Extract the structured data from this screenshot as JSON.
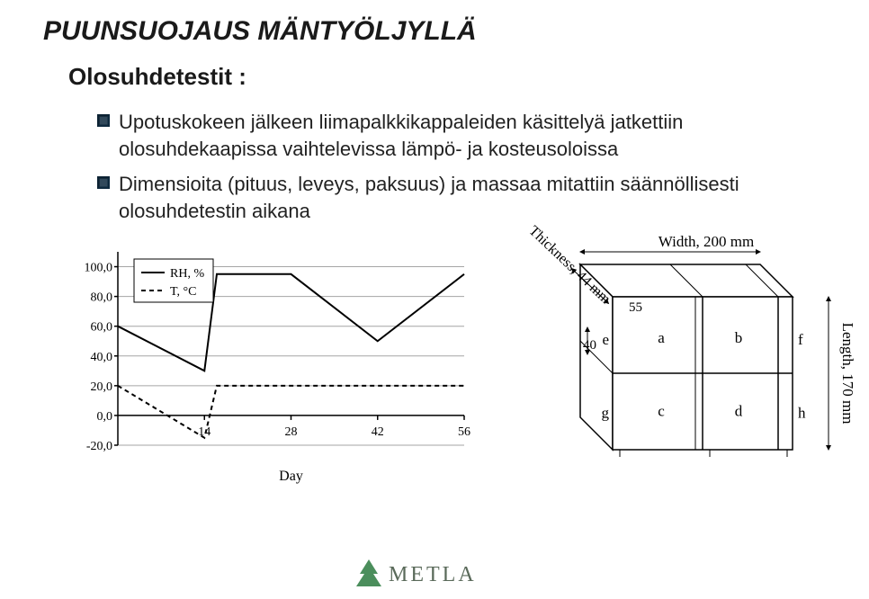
{
  "title": "PUUNSUOJAUS MÄNTYÖLJYLLÄ",
  "subtitle": "Olosuhdetestit :",
  "bullets": [
    "Upotuskokeen jälkeen liimapalkkikappaleiden käsittelyä jatkettiin olosuhdekaapissa vaihtelevissa lämpö- ja kosteusoloissa",
    "Dimensioita (pituus, leveys, paksuus) ja massaa mitattiin säännöllisesti olosuhdetestin aikana"
  ],
  "bullet_icon_color": "#0f2a3f",
  "chart": {
    "type": "line",
    "x_label": "Day",
    "x_ticks": [
      14,
      28,
      42,
      56
    ],
    "y_ticks": [
      -20.0,
      0.0,
      20.0,
      40.0,
      60.0,
      80.0,
      100.0
    ],
    "ylim": [
      -20,
      110
    ],
    "xlim": [
      0,
      56
    ],
    "grid_color": "#7f7f7f",
    "axis_color": "#000000",
    "background_color": "#ffffff",
    "label_fontsize": 14,
    "tick_fontsize": 14,
    "legend_fontsize": 14,
    "legend": {
      "items": [
        "RH, %",
        "T, °C"
      ],
      "box_stroke": "#000"
    },
    "series": [
      {
        "name": "RH, %",
        "color": "#000000",
        "dash": "none",
        "width": 2,
        "points": [
          {
            "x": 0,
            "y": 60
          },
          {
            "x": 14,
            "y": 30
          },
          {
            "x": 16,
            "y": 95
          },
          {
            "x": 28,
            "y": 95
          },
          {
            "x": 42,
            "y": 50
          },
          {
            "x": 56,
            "y": 95
          }
        ]
      },
      {
        "name": "T, °C",
        "color": "#000000",
        "dash": "5,4",
        "width": 2,
        "points": [
          {
            "x": 0,
            "y": 20
          },
          {
            "x": 14,
            "y": -15
          },
          {
            "x": 16,
            "y": 20
          },
          {
            "x": 28,
            "y": 20
          },
          {
            "x": 42,
            "y": 20
          },
          {
            "x": 56,
            "y": 20
          }
        ]
      }
    ]
  },
  "diagram": {
    "type": "infographic",
    "box": {
      "width_label": "Width, 200 mm",
      "length_label": "Length, 170 mm",
      "thickness_label": "Thickness, 44 mm"
    },
    "thickness_values": {
      "top": "55",
      "bottom": "40"
    },
    "cell_labels": {
      "a": "a",
      "b": "b",
      "c": "c",
      "d": "d",
      "e": "e",
      "f": "f",
      "g": "g",
      "h": "h"
    },
    "stroke": "#000000",
    "fill": "#ffffff",
    "label_fontsize": 17
  }
}
